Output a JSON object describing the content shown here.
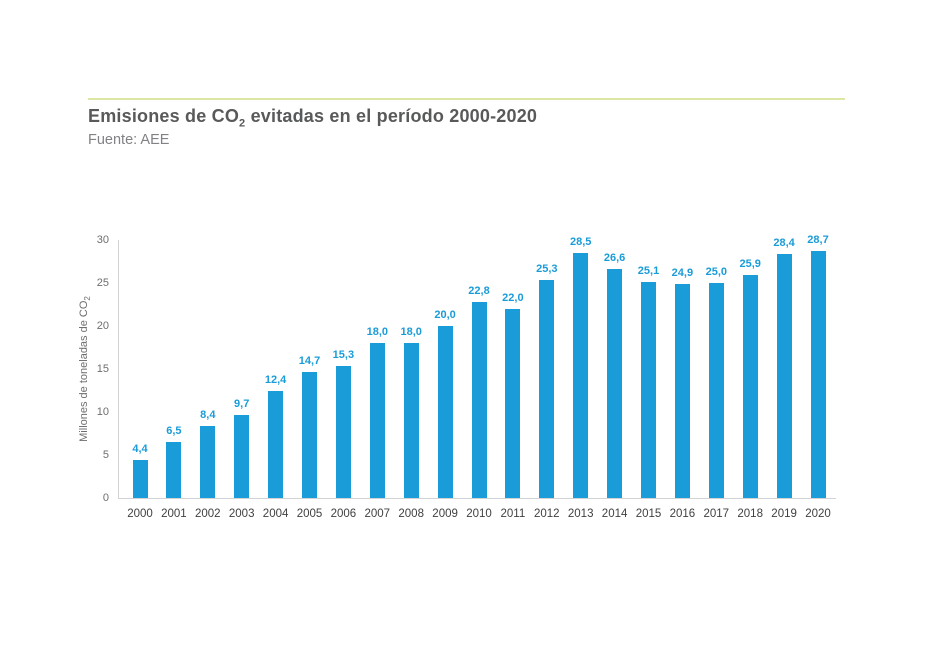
{
  "header": {
    "title_pre": "Emisiones de CO",
    "title_sub": "2",
    "title_post": " evitadas en el período 2000-2020",
    "source": "Fuente: AEE"
  },
  "colors": {
    "bar": "#1a9cd8",
    "value_label": "#1a9cd8",
    "top_rule": "#dbe7a3",
    "axis_line": "#d1d3d4",
    "title_text": "#58595b",
    "source_text": "#808285",
    "ytick_text": "#6d6e71",
    "xlabel_text": "#414042"
  },
  "chart_data": {
    "type": "bar",
    "title": "Emisiones de CO2 evitadas en el período 2000-2020",
    "subtitle": "Fuente: AEE",
    "categories": [
      "2000",
      "2001",
      "2002",
      "2003",
      "2004",
      "2005",
      "2006",
      "2007",
      "2008",
      "2009",
      "2010",
      "2011",
      "2012",
      "2013",
      "2014",
      "2015",
      "2016",
      "2017",
      "2018",
      "2019",
      "2020"
    ],
    "values": [
      4.4,
      6.5,
      8.4,
      9.7,
      12.4,
      14.7,
      15.3,
      18.0,
      18.0,
      20.0,
      22.8,
      22.0,
      25.3,
      28.5,
      26.6,
      25.1,
      24.9,
      25.0,
      25.9,
      28.4,
      28.7
    ],
    "value_labels": [
      "4,4",
      "6,5",
      "8,4",
      "9,7",
      "12,4",
      "14,7",
      "15,3",
      "18,0",
      "18,0",
      "20,0",
      "22,8",
      "22,0",
      "25,3",
      "28,5",
      "26,6",
      "25,1",
      "24,9",
      "25,0",
      "25,9",
      "28,4",
      "28,7"
    ],
    "xlabel": "",
    "ylabel_pre": "Millones de toneladas de CO",
    "ylabel_sub": "2",
    "ylim": [
      0,
      30
    ],
    "yticks": [
      "0",
      "5",
      "10",
      "15",
      "20",
      "25",
      "30"
    ],
    "grid": false,
    "legend": "none"
  }
}
